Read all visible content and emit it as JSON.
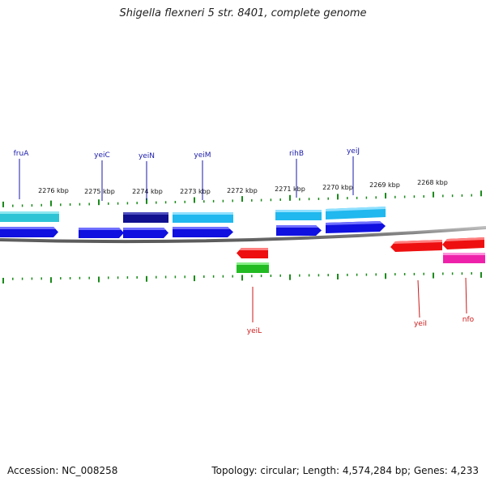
{
  "title": "Shigella flexneri 5 str. 8401, complete genome",
  "footer": {
    "accession": "Accession: NC_008258",
    "summary": "Topology: circular; Length: 4,574,284 bp; Genes: 4,233"
  },
  "colors": {
    "backbone": "#8a8a8a",
    "ticks": "#1a8a1a",
    "label_forward": "#1a1aaa",
    "label_reverse": "#cc1a1a",
    "cyan": "#2ec4d6",
    "blue": "#1010e0",
    "navy": "#101090",
    "sky": "#20b8ee",
    "red": "#ee1010",
    "green": "#22bb22",
    "magenta": "#ee22aa"
  },
  "scale_labels": [
    "2276 kbp",
    "2275 kbp",
    "2274 kbp",
    "2273 kbp",
    "2272 kbp",
    "2271 kbp",
    "2270 kbp",
    "2269 kbp",
    "2268 kbp"
  ],
  "gene_labels": {
    "forward": [
      "fruA",
      "yeiC",
      "yeiN",
      "yeiM",
      "rihB",
      "yeiJ"
    ],
    "reverse": [
      "yeiL",
      "yeiI",
      "nfo"
    ]
  }
}
